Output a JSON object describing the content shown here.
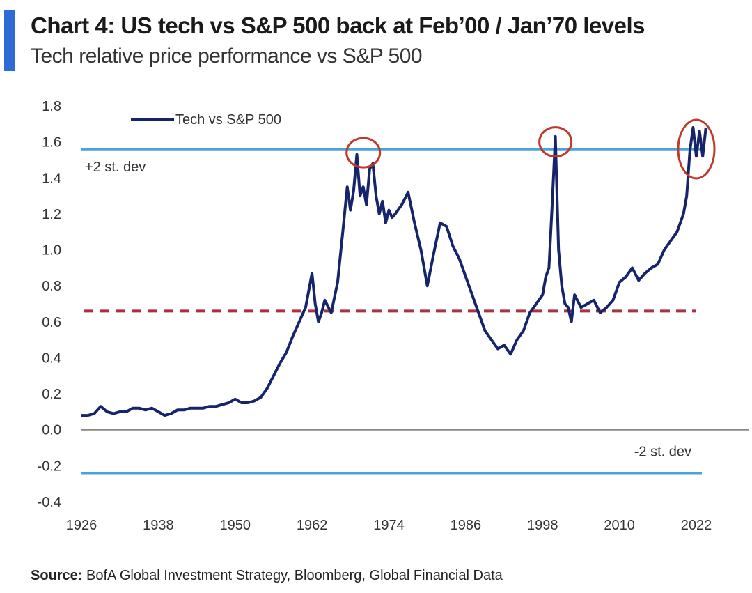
{
  "header": {
    "title": "Chart 4: US tech vs S&P 500 back at Feb’00 / Jan’70 levels",
    "subtitle": "Tech relative price performance vs S&P 500"
  },
  "source": {
    "label": "Source:",
    "text": "BofA Global Investment Strategy, Bloomberg, Global Financial Data"
  },
  "colors": {
    "series": "#16256b",
    "stdev_line": "#4aa3d8",
    "mean_line": "#a8323e",
    "zero_line": "#888888",
    "circle": "#c0392b",
    "accent": "#2f6bd6"
  },
  "chart_data": {
    "type": "line",
    "title": "Chart 4: US tech vs S&P 500 back at Feb’00 / Jan’70 levels",
    "subtitle": "Tech relative price performance vs S&P 500",
    "xlim": [
      1926,
      2024
    ],
    "ylim": [
      -0.4,
      1.8
    ],
    "x_ticks": [
      "1926",
      "1938",
      "1950",
      "1962",
      "1974",
      "1986",
      "1998",
      "2010",
      "2022"
    ],
    "y_ticks": [
      "1.8",
      "1.6",
      "1.4",
      "1.2",
      "1.0",
      "0.8",
      "0.6",
      "0.4",
      "0.2",
      "0.0",
      "-0.2",
      "-0.4"
    ],
    "legend": {
      "position": "top-left",
      "entries": [
        "Tech vs  S&P 500"
      ]
    },
    "grid": false,
    "series": [
      {
        "name": "Tech vs  S&P 500",
        "x": [
          1926,
          1927,
          1928,
          1929,
          1930,
          1931,
          1932,
          1933,
          1934,
          1935,
          1936,
          1937,
          1938,
          1939,
          1940,
          1941,
          1942,
          1943,
          1944,
          1945,
          1946,
          1947,
          1948,
          1949,
          1950,
          1951,
          1952,
          1953,
          1954,
          1955,
          1956,
          1957,
          1958,
          1959,
          1960,
          1961,
          1962,
          1962.5,
          1963,
          1963.5,
          1964,
          1965,
          1966,
          1966.8,
          1967.5,
          1968,
          1968.5,
          1969,
          1969.5,
          1970,
          1970.5,
          1971,
          1971.5,
          1972,
          1972.5,
          1973,
          1973.5,
          1974,
          1974.5,
          1975,
          1976,
          1977,
          1978,
          1979,
          1980,
          1981,
          1982,
          1983,
          1984,
          1985,
          1986,
          1987,
          1988,
          1989,
          1990,
          1991,
          1992,
          1993,
          1994,
          1995,
          1996,
          1997,
          1998,
          1998.5,
          1999,
          1999.5,
          2000,
          2000.5,
          2001,
          2001.5,
          2002,
          2002.5,
          2003,
          2004,
          2005,
          2006,
          2007,
          2008,
          2009,
          2010,
          2011,
          2012,
          2013,
          2014,
          2015,
          2016,
          2017,
          2018,
          2019,
          2020,
          2020.5,
          2021,
          2021.5,
          2022,
          2022.5,
          2023,
          2023.5
        ],
        "values": [
          0.08,
          0.08,
          0.09,
          0.13,
          0.1,
          0.09,
          0.1,
          0.1,
          0.12,
          0.12,
          0.11,
          0.12,
          0.1,
          0.08,
          0.09,
          0.11,
          0.11,
          0.12,
          0.12,
          0.12,
          0.13,
          0.13,
          0.14,
          0.15,
          0.17,
          0.15,
          0.15,
          0.16,
          0.18,
          0.23,
          0.3,
          0.37,
          0.43,
          0.52,
          0.6,
          0.68,
          0.87,
          0.7,
          0.6,
          0.65,
          0.72,
          0.65,
          0.82,
          1.1,
          1.35,
          1.22,
          1.33,
          1.53,
          1.3,
          1.35,
          1.25,
          1.45,
          1.48,
          1.3,
          1.2,
          1.27,
          1.15,
          1.22,
          1.18,
          1.2,
          1.25,
          1.32,
          1.15,
          1.0,
          0.8,
          0.98,
          1.15,
          1.13,
          1.02,
          0.95,
          0.85,
          0.75,
          0.65,
          0.55,
          0.5,
          0.45,
          0.47,
          0.42,
          0.5,
          0.55,
          0.65,
          0.7,
          0.75,
          0.85,
          0.9,
          1.25,
          1.63,
          1.0,
          0.8,
          0.7,
          0.68,
          0.6,
          0.75,
          0.68,
          0.7,
          0.72,
          0.65,
          0.68,
          0.72,
          0.82,
          0.85,
          0.9,
          0.83,
          0.87,
          0.9,
          0.92,
          1.0,
          1.05,
          1.1,
          1.2,
          1.3,
          1.55,
          1.68,
          1.52,
          1.66,
          1.52,
          1.68
        ]
      }
    ],
    "reference_lines": [
      {
        "label": "+2 st. dev",
        "y": 1.56,
        "style": "solid"
      },
      {
        "label": "-2 st. dev",
        "y": -0.24,
        "style": "solid"
      },
      {
        "label": "",
        "y": 0.66,
        "style": "dashed"
      }
    ],
    "highlight_circles_at_years": [
      1970,
      2000,
      2022
    ]
  }
}
